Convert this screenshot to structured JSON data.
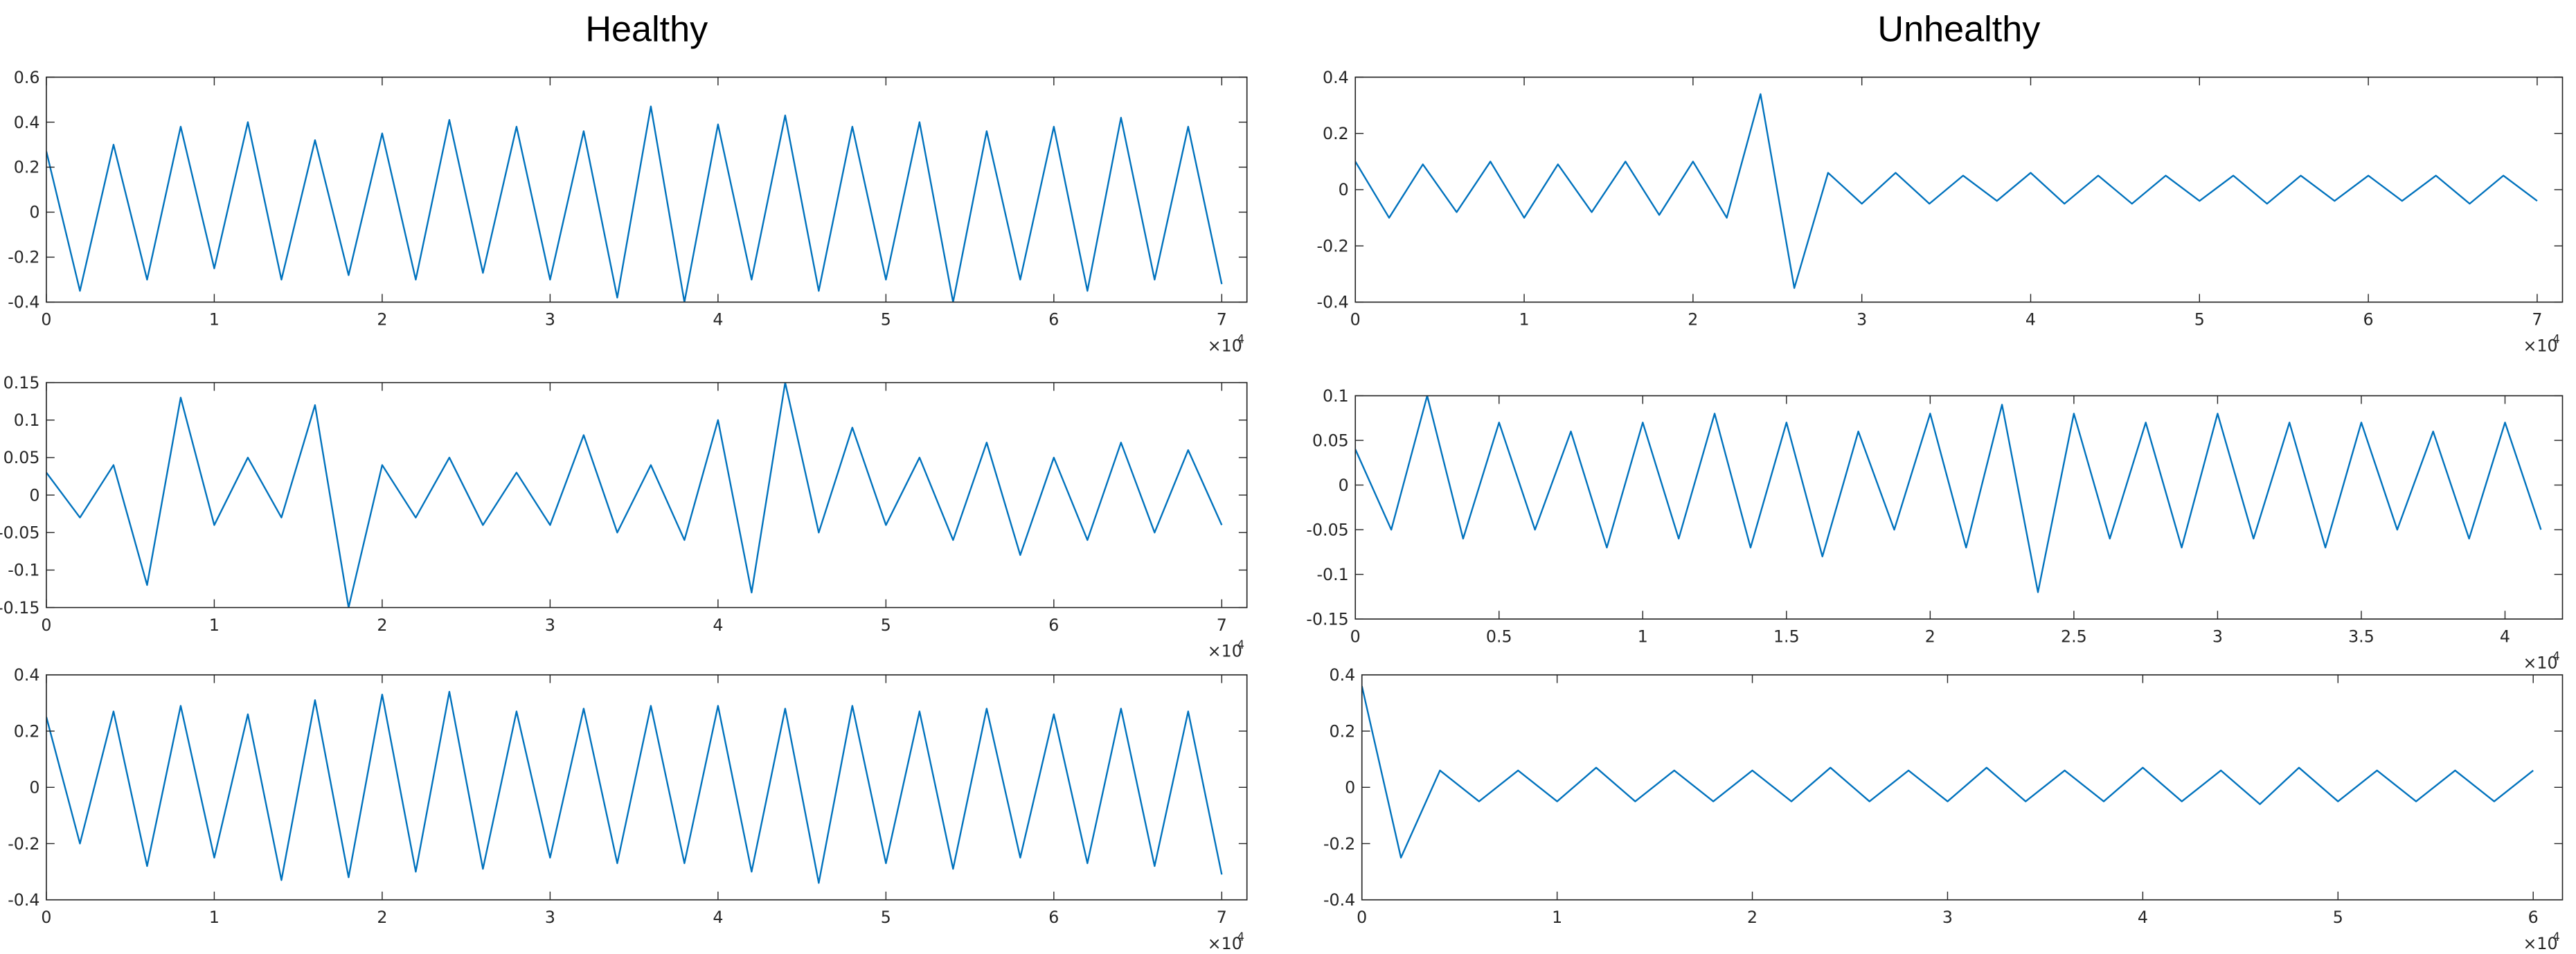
{
  "chart_data": [
    {
      "type": "line",
      "title": "Healthy",
      "color": "#0072bd",
      "xlim": [
        0,
        7.15
      ],
      "ylim": [
        -0.4,
        0.6
      ],
      "xticks": [
        0,
        1,
        2,
        3,
        4,
        5,
        6,
        7
      ],
      "yticks": [
        -0.4,
        -0.2,
        0,
        0.2,
        0.4,
        0.6
      ],
      "x_multiplier": "×10",
      "x_exponent": "4",
      "x": [
        0,
        0.2,
        0.4,
        0.6,
        0.8,
        1,
        1.2,
        1.4,
        1.6,
        1.8,
        2,
        2.2,
        2.4,
        2.6,
        2.8,
        3,
        3.2,
        3.4,
        3.6,
        3.8,
        4,
        4.2,
        4.4,
        4.6,
        4.8,
        5,
        5.2,
        5.4,
        5.6,
        5.8,
        6,
        6.2,
        6.4,
        6.6,
        6.8,
        7
      ],
      "values": [
        0.27,
        -0.35,
        0.3,
        -0.3,
        0.38,
        -0.25,
        0.4,
        -0.3,
        0.32,
        -0.28,
        0.35,
        -0.3,
        0.41,
        -0.27,
        0.38,
        -0.3,
        0.36,
        -0.38,
        0.47,
        -0.4,
        0.39,
        -0.3,
        0.43,
        -0.35,
        0.38,
        -0.3,
        0.4,
        -0.4,
        0.36,
        -0.3,
        0.38,
        -0.35,
        0.42,
        -0.3,
        0.38,
        -0.32
      ]
    },
    {
      "type": "line",
      "color": "#0072bd",
      "xlim": [
        0,
        7.15
      ],
      "ylim": [
        -0.15,
        0.15
      ],
      "xticks": [
        0,
        1,
        2,
        3,
        4,
        5,
        6,
        7
      ],
      "yticks": [
        -0.15,
        -0.1,
        -0.05,
        0,
        0.05,
        0.1,
        0.15
      ],
      "x_multiplier": "×10",
      "x_exponent": "4",
      "x": [
        0,
        0.2,
        0.4,
        0.6,
        0.8,
        1,
        1.2,
        1.4,
        1.6,
        1.8,
        2,
        2.2,
        2.4,
        2.6,
        2.8,
        3,
        3.2,
        3.4,
        3.6,
        3.8,
        4,
        4.2,
        4.4,
        4.6,
        4.8,
        5,
        5.2,
        5.4,
        5.6,
        5.8,
        6,
        6.2,
        6.4,
        6.6,
        6.8,
        7
      ],
      "values": [
        0.03,
        -0.03,
        0.04,
        -0.12,
        0.13,
        -0.04,
        0.05,
        -0.03,
        0.12,
        -0.15,
        0.04,
        -0.03,
        0.05,
        -0.04,
        0.03,
        -0.04,
        0.08,
        -0.05,
        0.04,
        -0.06,
        0.1,
        -0.13,
        0.15,
        -0.05,
        0.09,
        -0.04,
        0.05,
        -0.06,
        0.07,
        -0.08,
        0.05,
        -0.06,
        0.07,
        -0.05,
        0.06,
        -0.04
      ]
    },
    {
      "type": "line",
      "color": "#0072bd",
      "xlim": [
        0,
        7.15
      ],
      "ylim": [
        -0.4,
        0.4
      ],
      "xticks": [
        0,
        1,
        2,
        3,
        4,
        5,
        6,
        7
      ],
      "yticks": [
        -0.4,
        -0.2,
        0,
        0.2,
        0.4
      ],
      "x_multiplier": "×10",
      "x_exponent": "4",
      "x": [
        0,
        0.2,
        0.4,
        0.6,
        0.8,
        1,
        1.2,
        1.4,
        1.6,
        1.8,
        2,
        2.2,
        2.4,
        2.6,
        2.8,
        3,
        3.2,
        3.4,
        3.6,
        3.8,
        4,
        4.2,
        4.4,
        4.6,
        4.8,
        5,
        5.2,
        5.4,
        5.6,
        5.8,
        6,
        6.2,
        6.4,
        6.6,
        6.8,
        7
      ],
      "values": [
        0.25,
        -0.2,
        0.27,
        -0.28,
        0.29,
        -0.25,
        0.26,
        -0.33,
        0.31,
        -0.32,
        0.33,
        -0.3,
        0.34,
        -0.29,
        0.27,
        -0.25,
        0.28,
        -0.27,
        0.29,
        -0.27,
        0.29,
        -0.3,
        0.28,
        -0.34,
        0.29,
        -0.27,
        0.27,
        -0.29,
        0.28,
        -0.25,
        0.26,
        -0.27,
        0.28,
        -0.28,
        0.27,
        -0.31
      ]
    },
    {
      "type": "line",
      "title": "Unhealthy",
      "color": "#0072bd",
      "xlim": [
        0,
        7.15
      ],
      "ylim": [
        -0.4,
        0.4
      ],
      "xticks": [
        0,
        1,
        2,
        3,
        4,
        5,
        6,
        7
      ],
      "yticks": [
        -0.4,
        -0.2,
        0,
        0.2,
        0.4
      ],
      "x_multiplier": "×10",
      "x_exponent": "4",
      "x": [
        0,
        0.2,
        0.4,
        0.6,
        0.8,
        1,
        1.2,
        1.4,
        1.6,
        1.8,
        2,
        2.2,
        2.4,
        2.6,
        2.8,
        3,
        3.2,
        3.4,
        3.6,
        3.8,
        4,
        4.2,
        4.4,
        4.6,
        4.8,
        5,
        5.2,
        5.4,
        5.6,
        5.8,
        6,
        6.2,
        6.4,
        6.6,
        6.8,
        7
      ],
      "values": [
        0.1,
        -0.1,
        0.09,
        -0.08,
        0.1,
        -0.1,
        0.09,
        -0.08,
        0.1,
        -0.09,
        0.1,
        -0.1,
        0.34,
        -0.35,
        0.06,
        -0.05,
        0.06,
        -0.05,
        0.05,
        -0.04,
        0.06,
        -0.05,
        0.05,
        -0.05,
        0.05,
        -0.04,
        0.05,
        -0.05,
        0.05,
        -0.04,
        0.05,
        -0.04,
        0.05,
        -0.05,
        0.05,
        -0.04
      ]
    },
    {
      "type": "line",
      "color": "#0072bd",
      "xlim": [
        0,
        4.2
      ],
      "ylim": [
        -0.15,
        0.1
      ],
      "xticks": [
        0,
        0.5,
        1,
        1.5,
        2,
        2.5,
        3,
        3.5,
        4
      ],
      "yticks": [
        -0.15,
        -0.1,
        -0.05,
        0,
        0.05,
        0.1
      ],
      "x_multiplier": "×10",
      "x_exponent": "4",
      "x": [
        0,
        0.125,
        0.25,
        0.375,
        0.5,
        0.625,
        0.75,
        0.875,
        1,
        1.125,
        1.25,
        1.375,
        1.5,
        1.625,
        1.75,
        1.875,
        2,
        2.125,
        2.25,
        2.375,
        2.5,
        2.625,
        2.75,
        2.875,
        3,
        3.125,
        3.25,
        3.375,
        3.5,
        3.625,
        3.75,
        3.875,
        4,
        4.125
      ],
      "values": [
        0.04,
        -0.05,
        0.1,
        -0.06,
        0.07,
        -0.05,
        0.06,
        -0.07,
        0.07,
        -0.06,
        0.08,
        -0.07,
        0.07,
        -0.08,
        0.06,
        -0.05,
        0.08,
        -0.07,
        0.09,
        -0.12,
        0.08,
        -0.06,
        0.07,
        -0.07,
        0.08,
        -0.06,
        0.07,
        -0.07,
        0.07,
        -0.05,
        0.06,
        -0.06,
        0.07,
        -0.05
      ]
    },
    {
      "type": "line",
      "color": "#0072bd",
      "xlim": [
        0,
        6.15
      ],
      "ylim": [
        -0.4,
        0.4
      ],
      "xticks": [
        0,
        1,
        2,
        3,
        4,
        5,
        6
      ],
      "yticks": [
        -0.4,
        -0.2,
        0,
        0.2,
        0.4
      ],
      "x_multiplier": "×10",
      "x_exponent": "4",
      "x": [
        0,
        0.2,
        0.4,
        0.6,
        0.8,
        1,
        1.2,
        1.4,
        1.6,
        1.8,
        2,
        2.2,
        2.4,
        2.6,
        2.8,
        3,
        3.2,
        3.4,
        3.6,
        3.8,
        4,
        4.2,
        4.4,
        4.6,
        4.8,
        5,
        5.2,
        5.4,
        5.6,
        5.8,
        6
      ],
      "values": [
        0.36,
        -0.25,
        0.06,
        -0.05,
        0.06,
        -0.05,
        0.07,
        -0.05,
        0.06,
        -0.05,
        0.06,
        -0.05,
        0.07,
        -0.05,
        0.06,
        -0.05,
        0.07,
        -0.05,
        0.06,
        -0.05,
        0.07,
        -0.05,
        0.06,
        -0.06,
        0.07,
        -0.05,
        0.06,
        -0.05,
        0.06,
        -0.05,
        0.06
      ]
    }
  ]
}
